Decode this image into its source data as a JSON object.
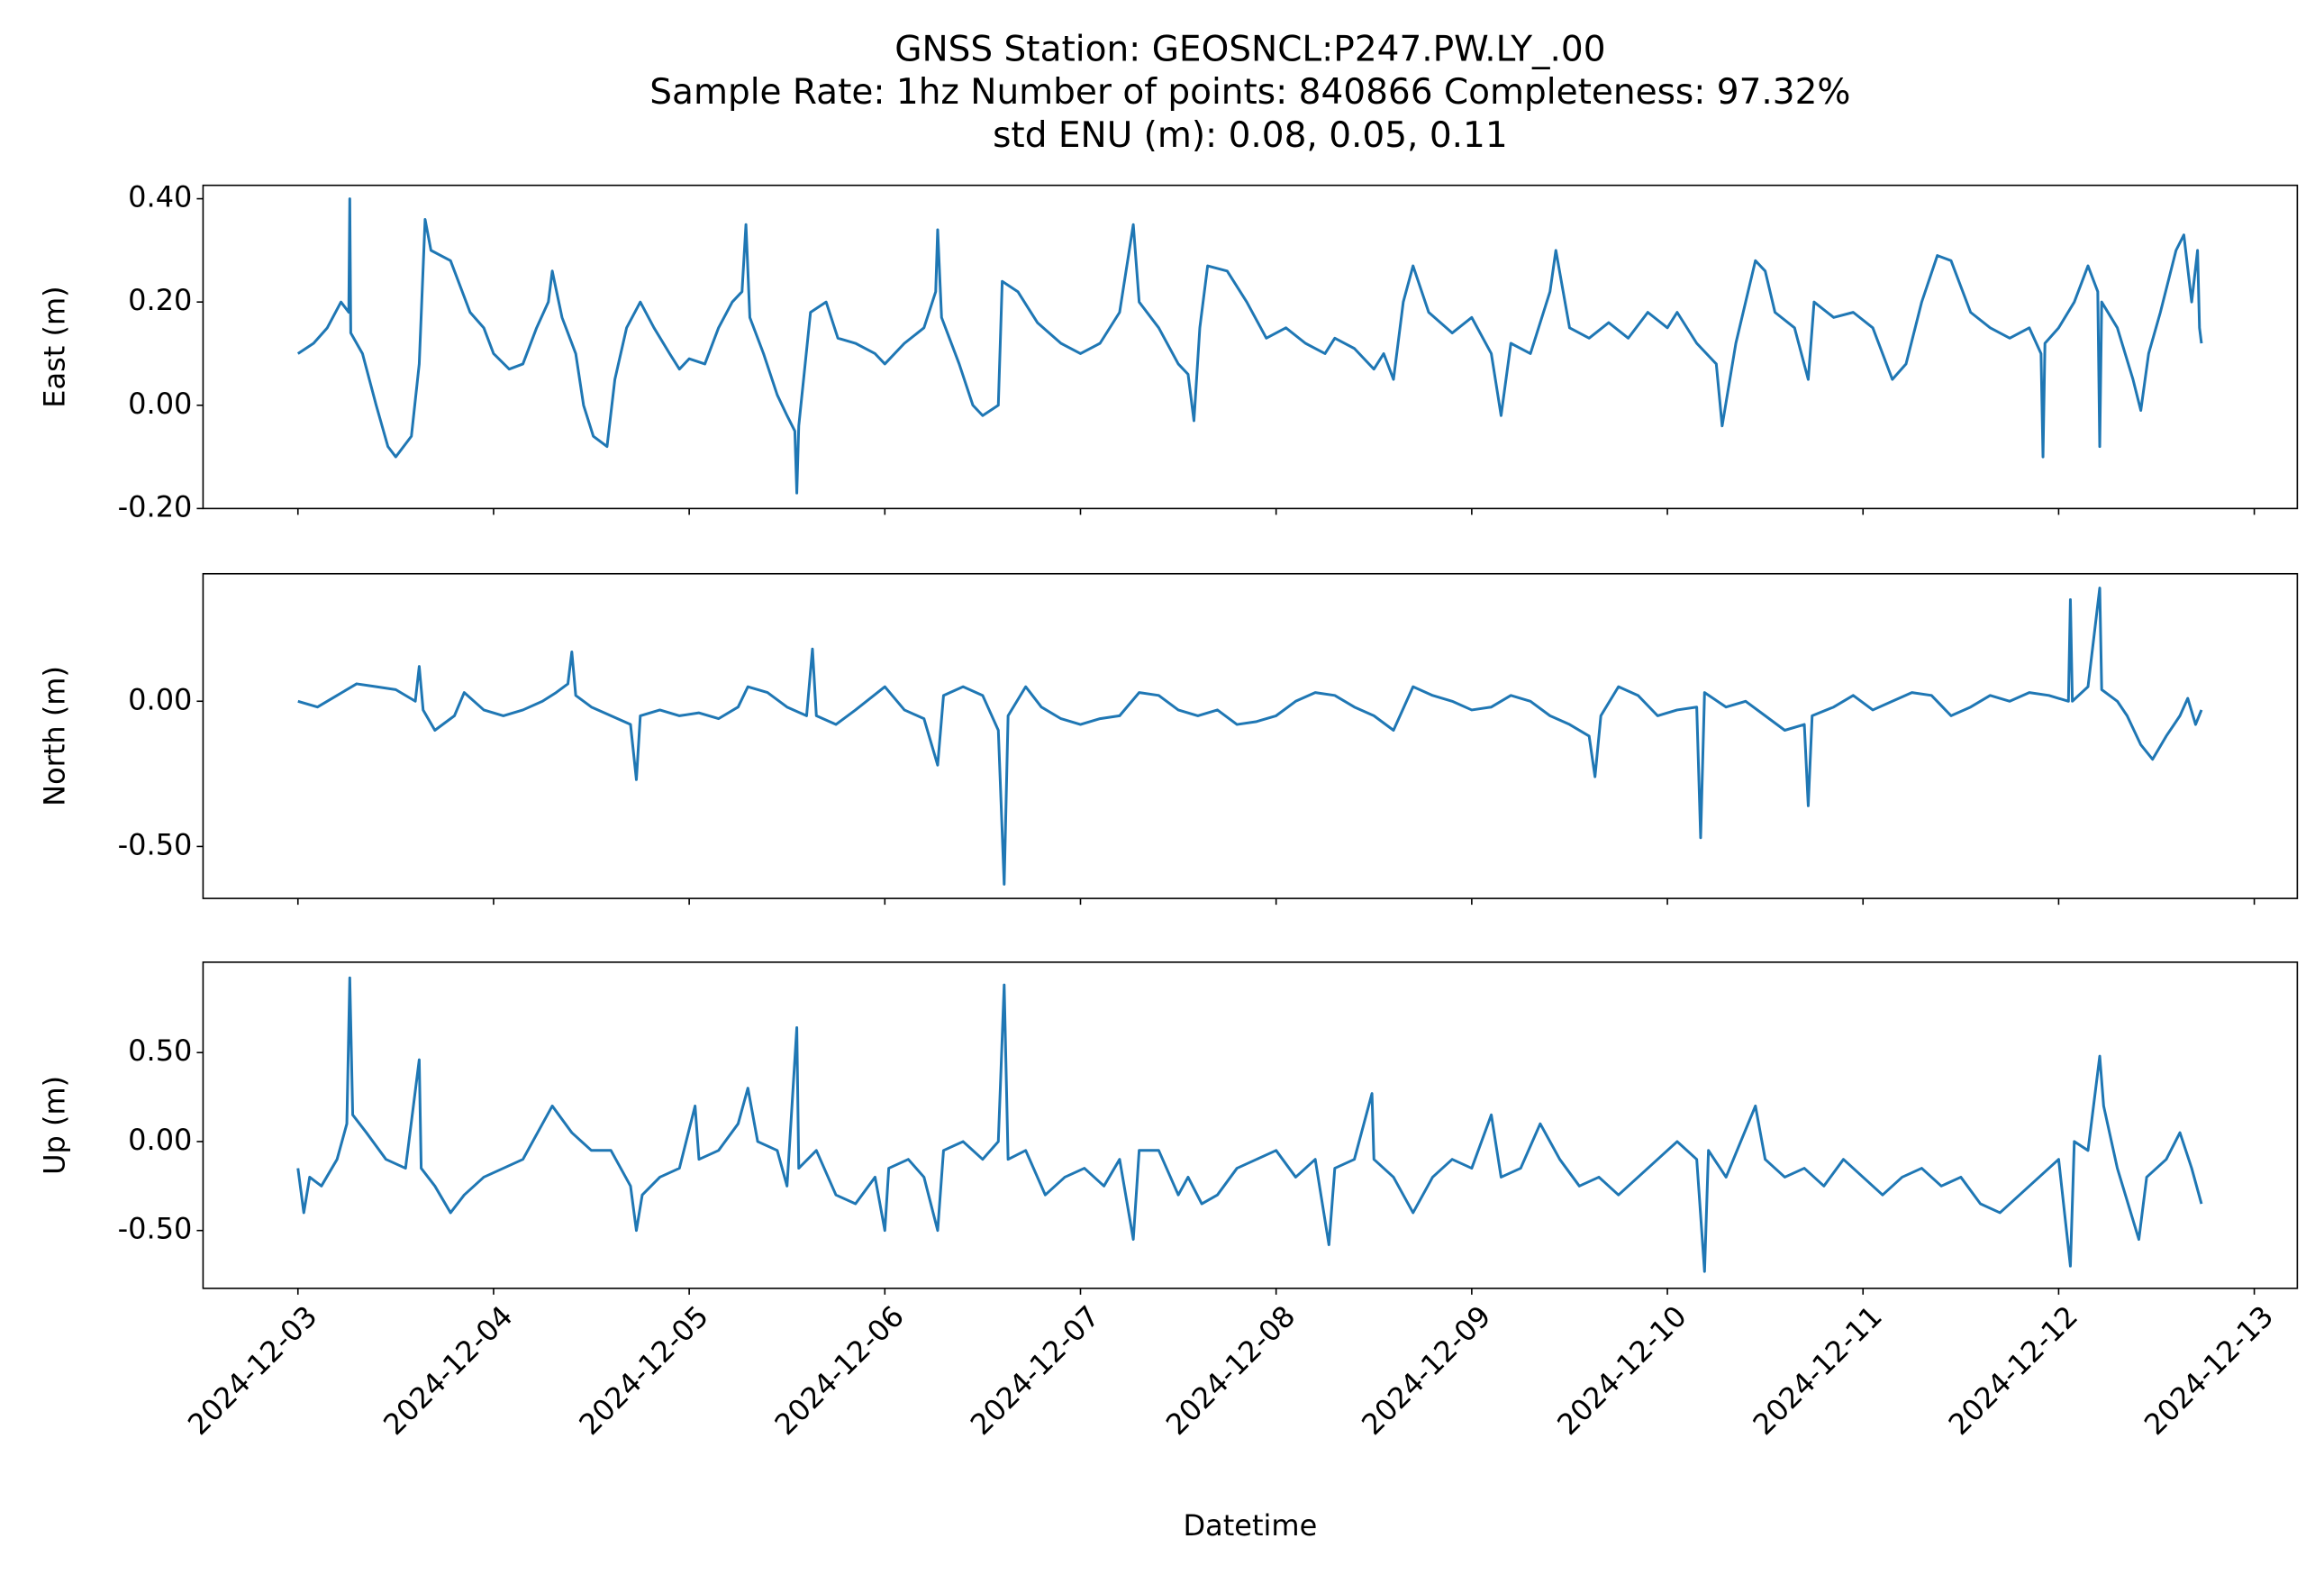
{
  "chart_data": [
    {
      "type": "line",
      "title": [
        "GNSS Station: GEOSNCL:P247.PW.LY_.00",
        "Sample Rate: 1hz   Number of points: 840866    Completeness:  97.32%",
        "std ENU (m):  0.08, 0.05, 0.11"
      ],
      "ylabel": "East (m)",
      "color": "#1f77b4",
      "xlim": [
        -0.485,
        10.22
      ],
      "xticks": [
        0,
        1,
        2,
        3,
        4,
        5,
        6,
        7,
        8,
        9,
        10
      ],
      "ylim": [
        -0.2,
        0.426
      ],
      "yticks": [
        {
          "value": 0.4,
          "label": "0.40"
        },
        {
          "value": 0.2,
          "label": "0.20"
        },
        {
          "value": 0,
          "label": "0.00"
        },
        {
          "value": -0.2,
          "label": "-0.20"
        }
      ],
      "x": [
        0,
        0.08,
        0.15,
        0.22,
        0.26,
        0.265,
        0.27,
        0.33,
        0.4,
        0.46,
        0.5,
        0.58,
        0.62,
        0.65,
        0.68,
        0.78,
        0.88,
        0.95,
        1.0,
        1.08,
        1.15,
        1.22,
        1.28,
        1.3,
        1.35,
        1.42,
        1.46,
        1.51,
        1.58,
        1.62,
        1.68,
        1.75,
        1.82,
        1.9,
        1.95,
        2.0,
        2.08,
        2.15,
        2.22,
        2.27,
        2.29,
        2.31,
        2.38,
        2.45,
        2.5,
        2.54,
        2.55,
        2.56,
        2.62,
        2.7,
        2.76,
        2.85,
        2.95,
        3.0,
        3.1,
        3.2,
        3.26,
        3.27,
        3.29,
        3.38,
        3.45,
        3.5,
        3.58,
        3.6,
        3.68,
        3.78,
        3.9,
        4.0,
        4.1,
        4.2,
        4.27,
        4.3,
        4.4,
        4.5,
        4.55,
        4.58,
        4.61,
        4.65,
        4.75,
        4.85,
        4.95,
        5.05,
        5.15,
        5.25,
        5.3,
        5.4,
        5.5,
        5.55,
        5.6,
        5.65,
        5.7,
        5.78,
        5.9,
        6.0,
        6.1,
        6.15,
        6.2,
        6.3,
        6.4,
        6.43,
        6.5,
        6.6,
        6.7,
        6.8,
        6.9,
        7.0,
        7.05,
        7.15,
        7.25,
        7.28,
        7.35,
        7.45,
        7.5,
        7.55,
        7.65,
        7.72,
        7.75,
        7.85,
        7.95,
        8.05,
        8.15,
        8.22,
        8.3,
        8.38,
        8.45,
        8.55,
        8.65,
        8.75,
        8.85,
        8.91,
        8.92,
        8.93,
        9.0,
        9.08,
        9.15,
        9.2,
        9.21,
        9.22,
        9.3,
        9.38,
        9.42,
        9.46,
        9.52,
        9.6,
        9.64,
        9.68,
        9.71,
        9.72,
        9.73
      ],
      "values": [
        0.1,
        0.12,
        0.15,
        0.2,
        0.18,
        0.4,
        0.14,
        0.1,
        0.0,
        -0.08,
        -0.1,
        -0.06,
        0.08,
        0.36,
        0.3,
        0.28,
        0.18,
        0.15,
        0.1,
        0.07,
        0.08,
        0.15,
        0.2,
        0.26,
        0.17,
        0.1,
        0.0,
        -0.06,
        -0.08,
        0.05,
        0.15,
        0.2,
        0.15,
        0.1,
        0.07,
        0.09,
        0.08,
        0.15,
        0.2,
        0.22,
        0.35,
        0.17,
        0.1,
        0.02,
        -0.02,
        -0.05,
        -0.17,
        -0.04,
        0.18,
        0.2,
        0.13,
        0.12,
        0.1,
        0.08,
        0.12,
        0.15,
        0.22,
        0.34,
        0.17,
        0.08,
        0.0,
        -0.02,
        0.0,
        0.24,
        0.22,
        0.16,
        0.12,
        0.1,
        0.12,
        0.18,
        0.35,
        0.2,
        0.15,
        0.08,
        0.06,
        -0.03,
        0.15,
        0.27,
        0.26,
        0.2,
        0.13,
        0.15,
        0.12,
        0.1,
        0.13,
        0.11,
        0.07,
        0.1,
        0.05,
        0.2,
        0.27,
        0.18,
        0.14,
        0.17,
        0.1,
        -0.02,
        0.12,
        0.1,
        0.22,
        0.3,
        0.15,
        0.13,
        0.16,
        0.13,
        0.18,
        0.15,
        0.18,
        0.12,
        0.08,
        -0.04,
        0.12,
        0.28,
        0.26,
        0.18,
        0.15,
        0.05,
        0.2,
        0.17,
        0.18,
        0.15,
        0.05,
        0.08,
        0.2,
        0.29,
        0.28,
        0.18,
        0.15,
        0.13,
        0.15,
        0.1,
        -0.1,
        0.12,
        0.15,
        0.2,
        0.27,
        0.22,
        -0.08,
        0.2,
        0.15,
        0.05,
        -0.01,
        0.1,
        0.18,
        0.3,
        0.33,
        0.2,
        0.3,
        0.15,
        0.12
      ]
    },
    {
      "type": "line",
      "ylabel": "North (m)",
      "color": "#1f77b4",
      "xlim": [
        -0.485,
        10.22
      ],
      "xticks": [
        0,
        1,
        2,
        3,
        4,
        5,
        6,
        7,
        8,
        9,
        10
      ],
      "ylim": [
        -0.679,
        0.439
      ],
      "yticks": [
        {
          "value": 0,
          "label": "0.00"
        },
        {
          "value": -0.5,
          "label": "-0.50"
        }
      ],
      "x": [
        0,
        0.1,
        0.2,
        0.3,
        0.4,
        0.5,
        0.6,
        0.62,
        0.64,
        0.7,
        0.8,
        0.85,
        0.95,
        1.05,
        1.15,
        1.25,
        1.32,
        1.38,
        1.4,
        1.42,
        1.5,
        1.6,
        1.7,
        1.73,
        1.75,
        1.85,
        1.95,
        2.05,
        2.15,
        2.25,
        2.3,
        2.4,
        2.5,
        2.6,
        2.63,
        2.65,
        2.75,
        2.85,
        3.0,
        3.1,
        3.2,
        3.27,
        3.3,
        3.4,
        3.5,
        3.58,
        3.61,
        3.63,
        3.72,
        3.8,
        3.9,
        4.0,
        4.1,
        4.2,
        4.3,
        4.4,
        4.5,
        4.6,
        4.7,
        4.8,
        4.9,
        5.0,
        5.1,
        5.2,
        5.3,
        5.4,
        5.5,
        5.6,
        5.7,
        5.8,
        5.9,
        6.0,
        6.1,
        6.2,
        6.3,
        6.4,
        6.5,
        6.6,
        6.63,
        6.66,
        6.75,
        6.85,
        6.95,
        7.05,
        7.15,
        7.17,
        7.19,
        7.3,
        7.4,
        7.5,
        7.6,
        7.7,
        7.72,
        7.74,
        7.85,
        7.95,
        8.05,
        8.15,
        8.25,
        8.35,
        8.45,
        8.55,
        8.65,
        8.75,
        8.85,
        8.95,
        9.05,
        9.06,
        9.07,
        9.15,
        9.21,
        9.22,
        9.3,
        9.35,
        9.42,
        9.48,
        9.55,
        9.62,
        9.66,
        9.7,
        9.73
      ],
      "values": [
        0.0,
        -0.02,
        0.02,
        0.06,
        0.05,
        0.04,
        0.0,
        0.12,
        -0.03,
        -0.1,
        -0.05,
        0.03,
        -0.03,
        -0.05,
        -0.03,
        0.0,
        0.03,
        0.06,
        0.17,
        0.02,
        -0.02,
        -0.05,
        -0.08,
        -0.27,
        -0.05,
        -0.03,
        -0.05,
        -0.04,
        -0.06,
        -0.02,
        0.05,
        0.03,
        -0.02,
        -0.05,
        0.18,
        -0.05,
        -0.08,
        -0.03,
        0.05,
        -0.03,
        -0.06,
        -0.22,
        0.02,
        0.05,
        0.02,
        -0.1,
        -0.63,
        -0.05,
        0.05,
        -0.02,
        -0.06,
        -0.08,
        -0.06,
        -0.05,
        0.03,
        0.02,
        -0.03,
        -0.05,
        -0.03,
        -0.08,
        -0.07,
        -0.05,
        0.0,
        0.03,
        0.02,
        -0.02,
        -0.05,
        -0.1,
        0.05,
        0.02,
        0.0,
        -0.03,
        -0.02,
        0.02,
        0.0,
        -0.05,
        -0.08,
        -0.12,
        -0.26,
        -0.05,
        0.05,
        0.02,
        -0.05,
        -0.03,
        -0.02,
        -0.47,
        0.03,
        -0.02,
        0.0,
        -0.05,
        -0.1,
        -0.08,
        -0.36,
        -0.05,
        -0.02,
        0.02,
        -0.03,
        0.0,
        0.03,
        0.02,
        -0.05,
        -0.02,
        0.02,
        0.0,
        0.03,
        0.02,
        0.0,
        0.35,
        0.0,
        0.05,
        0.39,
        0.04,
        0.0,
        -0.05,
        -0.15,
        -0.2,
        -0.12,
        -0.05,
        0.01,
        -0.08,
        -0.03
      ]
    },
    {
      "type": "line",
      "ylabel": "Up (m)",
      "xlabel": "Datetime",
      "color": "#1f77b4",
      "xlim": [
        -0.485,
        10.22
      ],
      "xticks": [
        {
          "value": 0,
          "label": "2024-12-03"
        },
        {
          "value": 1,
          "label": "2024-12-04"
        },
        {
          "value": 2,
          "label": "2024-12-05"
        },
        {
          "value": 3,
          "label": "2024-12-06"
        },
        {
          "value": 4,
          "label": "2024-12-07"
        },
        {
          "value": 5,
          "label": "2024-12-08"
        },
        {
          "value": 6,
          "label": "2024-12-09"
        },
        {
          "value": 7,
          "label": "2024-12-10"
        },
        {
          "value": 8,
          "label": "2024-12-11"
        },
        {
          "value": 9,
          "label": "2024-12-12"
        },
        {
          "value": 10,
          "label": "2024-12-13"
        }
      ],
      "ylim": [
        -0.825,
        1.008
      ],
      "yticks": [
        {
          "value": 0.5,
          "label": "0.50"
        },
        {
          "value": 0,
          "label": "0.00"
        },
        {
          "value": -0.5,
          "label": "-0.50"
        }
      ],
      "x": [
        0,
        0.03,
        0.06,
        0.12,
        0.2,
        0.25,
        0.265,
        0.28,
        0.35,
        0.45,
        0.55,
        0.62,
        0.63,
        0.7,
        0.78,
        0.85,
        0.95,
        1.05,
        1.15,
        1.25,
        1.3,
        1.4,
        1.5,
        1.6,
        1.7,
        1.73,
        1.76,
        1.85,
        1.95,
        2.03,
        2.05,
        2.15,
        2.25,
        2.3,
        2.35,
        2.45,
        2.5,
        2.55,
        2.56,
        2.65,
        2.75,
        2.85,
        2.95,
        3.0,
        3.02,
        3.12,
        3.2,
        3.27,
        3.3,
        3.4,
        3.5,
        3.58,
        3.61,
        3.63,
        3.72,
        3.82,
        3.92,
        4.02,
        4.12,
        4.2,
        4.27,
        4.3,
        4.4,
        4.5,
        4.55,
        4.62,
        4.7,
        4.8,
        4.9,
        5.0,
        5.1,
        5.2,
        5.27,
        5.3,
        5.4,
        5.49,
        5.5,
        5.6,
        5.7,
        5.8,
        5.9,
        6.0,
        6.1,
        6.15,
        6.25,
        6.35,
        6.45,
        6.55,
        6.65,
        6.75,
        6.85,
        6.95,
        7.05,
        7.15,
        7.19,
        7.21,
        7.3,
        7.45,
        7.5,
        7.6,
        7.7,
        7.8,
        7.9,
        8.0,
        8.1,
        8.2,
        8.3,
        8.4,
        8.5,
        8.6,
        8.7,
        8.8,
        8.9,
        9.0,
        9.06,
        9.08,
        9.15,
        9.21,
        9.23,
        9.3,
        9.41,
        9.45,
        9.55,
        9.62,
        9.68,
        9.73
      ],
      "values": [
        -0.15,
        -0.4,
        -0.2,
        -0.25,
        -0.1,
        0.1,
        0.92,
        0.15,
        0.05,
        -0.1,
        -0.15,
        0.46,
        -0.15,
        -0.25,
        -0.4,
        -0.3,
        -0.2,
        -0.15,
        -0.1,
        0.1,
        0.2,
        0.05,
        -0.05,
        -0.05,
        -0.25,
        -0.5,
        -0.3,
        -0.2,
        -0.15,
        0.2,
        -0.1,
        -0.05,
        0.1,
        0.3,
        0.0,
        -0.05,
        -0.25,
        0.64,
        -0.15,
        -0.05,
        -0.3,
        -0.35,
        -0.2,
        -0.5,
        -0.15,
        -0.1,
        -0.2,
        -0.5,
        -0.05,
        0.0,
        -0.1,
        0.0,
        0.88,
        -0.1,
        -0.05,
        -0.3,
        -0.2,
        -0.15,
        -0.25,
        -0.1,
        -0.55,
        -0.05,
        -0.05,
        -0.3,
        -0.2,
        -0.35,
        -0.3,
        -0.15,
        -0.1,
        -0.05,
        -0.2,
        -0.1,
        -0.58,
        -0.15,
        -0.1,
        0.27,
        -0.1,
        -0.2,
        -0.4,
        -0.2,
        -0.1,
        -0.15,
        0.15,
        -0.2,
        -0.15,
        0.1,
        -0.1,
        -0.25,
        -0.2,
        -0.3,
        -0.2,
        -0.1,
        0.0,
        -0.1,
        -0.73,
        -0.05,
        -0.2,
        0.2,
        -0.1,
        -0.2,
        -0.15,
        -0.25,
        -0.1,
        -0.2,
        -0.3,
        -0.2,
        -0.15,
        -0.25,
        -0.2,
        -0.35,
        -0.4,
        -0.3,
        -0.2,
        -0.1,
        -0.7,
        0.0,
        -0.05,
        0.48,
        0.2,
        -0.15,
        -0.55,
        -0.2,
        -0.1,
        0.05,
        -0.15,
        -0.35
      ]
    }
  ]
}
